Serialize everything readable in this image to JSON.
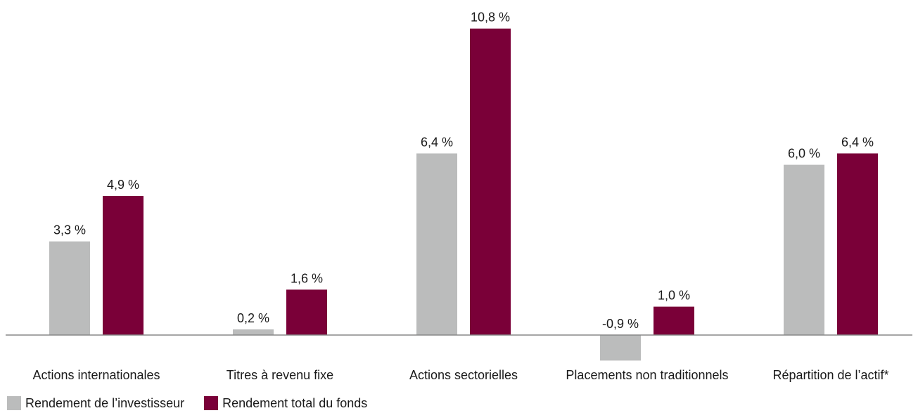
{
  "colors": {
    "investor": "#bbbcbc",
    "fund": "#7a0038",
    "axis": "#888888",
    "text": "#1a1a1a"
  },
  "legend": {
    "investor_label": "Rendement de l’investisseur",
    "fund_label": "Rendement total du fonds"
  },
  "chart_data": {
    "type": "bar",
    "categories": [
      "Actions internationales",
      "Titres à revenu fixe",
      "Actions sectorielles",
      "Placements non traditionnels",
      "Répartition de l’actif*"
    ],
    "series": [
      {
        "name": "Rendement de l’investisseur",
        "values": [
          3.3,
          0.2,
          6.4,
          -0.9,
          6.0
        ],
        "labels": [
          "3,3 %",
          "0,2 %",
          "6,4 %",
          "-0,9 %",
          "6,0 %"
        ]
      },
      {
        "name": "Rendement total du fonds",
        "values": [
          4.9,
          1.6,
          10.8,
          1.0,
          6.4
        ],
        "labels": [
          "4,9 %",
          "1,6 %",
          "10,8 %",
          "1,0 %",
          "6,4 %"
        ]
      }
    ],
    "ylim": [
      -1.0,
      11.5
    ],
    "grid": false,
    "legend_position": "bottom-left"
  }
}
